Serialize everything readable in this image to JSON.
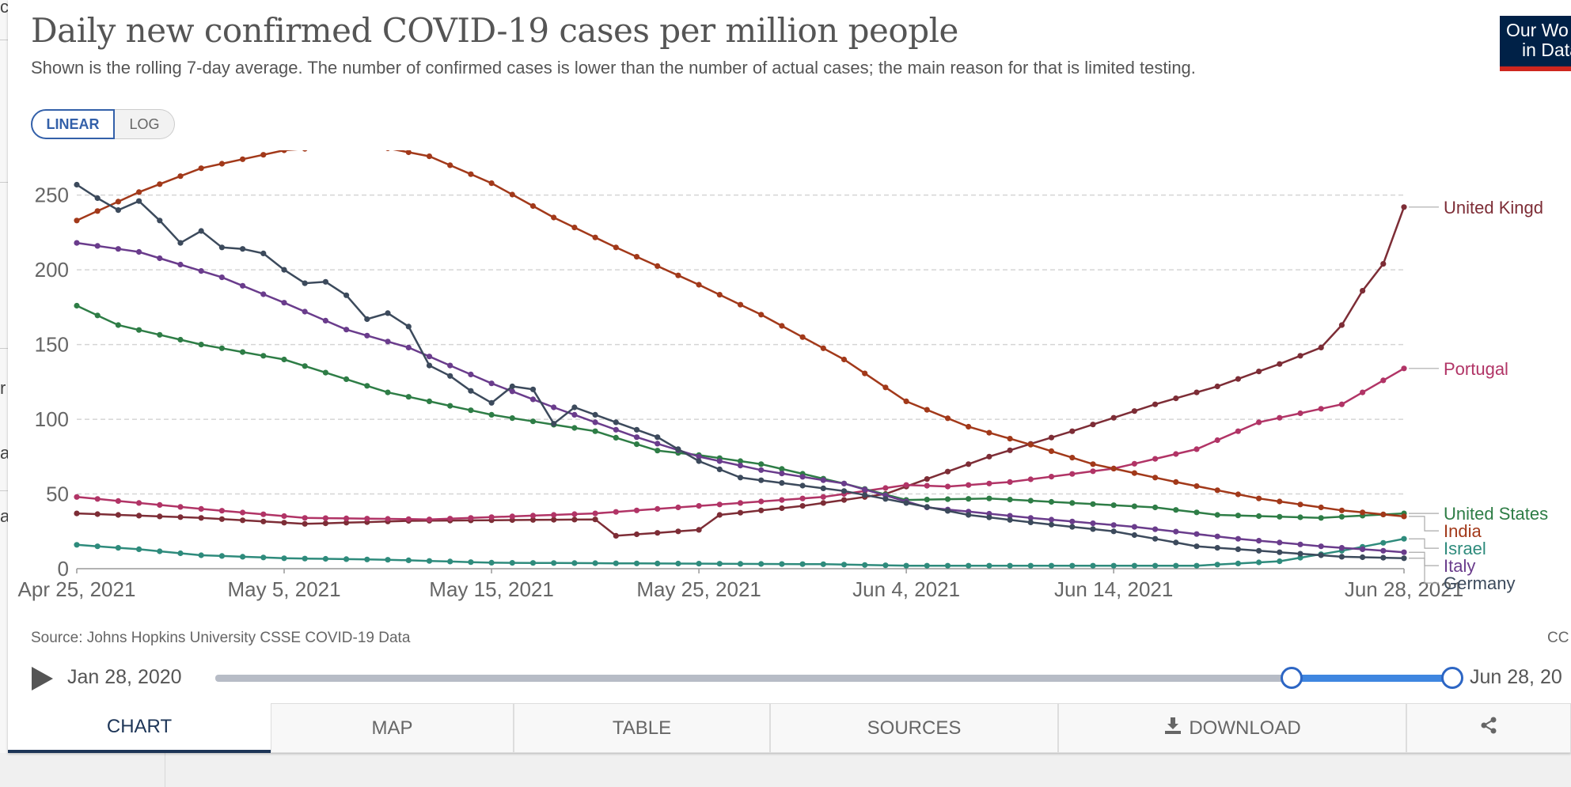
{
  "header": {
    "title": "Daily new confirmed COVID-19 cases per million people",
    "subtitle": "Shown is the rolling 7-day average. The number of confirmed cases is lower than the number of actual cases; the main reason for that is limited testing.",
    "logo_line1": "Our Wo",
    "logo_line2": "in Data"
  },
  "edge": {
    "letters": [
      "ci",
      "r",
      "a",
      "a"
    ]
  },
  "scale_toggle": {
    "linear": "LINEAR",
    "log": "LOG",
    "selected": "LINEAR"
  },
  "source": "Source: Johns Hopkins University CSSE COVID-19 Data",
  "license": "CC",
  "timeline": {
    "start": "Jan 28, 2020",
    "end": "Jun 28, 20",
    "range_start_fraction": 0.87,
    "range_end_fraction": 1.0
  },
  "tabs": [
    "CHART",
    "MAP",
    "TABLE",
    "SOURCES",
    "DOWNLOAD"
  ],
  "icons": {
    "play": "play-icon",
    "download": "download-icon",
    "share": "share-icon"
  },
  "chart_data": {
    "type": "line",
    "title": "Daily new confirmed COVID-19 cases per million people",
    "xlabel": "",
    "ylabel": "",
    "x_start": "Apr 25, 2021",
    "x_end": "Jun 28, 2021",
    "x_ticks": [
      "Apr 25, 2021",
      "May 5, 2021",
      "May 15, 2021",
      "May 25, 2021",
      "Jun 4, 2021",
      "Jun 14, 2021",
      "Jun 28, 2021"
    ],
    "y_ticks": [
      0,
      50,
      100,
      150,
      200,
      250
    ],
    "ylim": [
      0,
      280
    ],
    "grid": "horizontal dashed",
    "series": [
      {
        "name": "United Kingdom",
        "label": "United Kingd",
        "color": "#7d2d36",
        "anchors": [
          [
            "2021-04-25",
            37
          ],
          [
            "2021-05-01",
            34
          ],
          [
            "2021-05-06",
            30
          ],
          [
            "2021-05-11",
            32
          ],
          [
            "2021-05-20",
            33
          ],
          [
            "2021-05-21",
            22
          ],
          [
            "2021-05-25",
            26
          ],
          [
            "2021-05-26",
            36
          ],
          [
            "2021-05-30",
            42
          ],
          [
            "2021-06-03",
            50
          ],
          [
            "2021-06-08",
            75
          ],
          [
            "2021-06-12",
            92
          ],
          [
            "2021-06-16",
            110
          ],
          [
            "2021-06-19",
            122
          ],
          [
            "2021-06-22",
            137
          ],
          [
            "2021-06-24",
            148
          ],
          [
            "2021-06-25",
            163
          ],
          [
            "2021-06-26",
            186
          ],
          [
            "2021-06-27",
            204
          ],
          [
            "2021-06-28",
            242
          ]
        ]
      },
      {
        "name": "Portugal",
        "label": "Portugal",
        "color": "#b13466",
        "anchors": [
          [
            "2021-04-25",
            48
          ],
          [
            "2021-05-01",
            40
          ],
          [
            "2021-05-06",
            34
          ],
          [
            "2021-05-12",
            33
          ],
          [
            "2021-05-20",
            37
          ],
          [
            "2021-05-25",
            42
          ],
          [
            "2021-05-31",
            48
          ],
          [
            "2021-06-04",
            56
          ],
          [
            "2021-06-06",
            55
          ],
          [
            "2021-06-09",
            58
          ],
          [
            "2021-06-14",
            67
          ],
          [
            "2021-06-18",
            80
          ],
          [
            "2021-06-21",
            98
          ],
          [
            "2021-06-25",
            110
          ],
          [
            "2021-06-28",
            134
          ]
        ]
      },
      {
        "name": "United States",
        "label": "United States",
        "color": "#2e7d46",
        "anchors": [
          [
            "2021-04-25",
            176
          ],
          [
            "2021-04-27",
            163
          ],
          [
            "2021-05-01",
            150
          ],
          [
            "2021-05-05",
            140
          ],
          [
            "2021-05-10",
            118
          ],
          [
            "2021-05-15",
            103
          ],
          [
            "2021-05-20",
            92
          ],
          [
            "2021-05-23",
            79
          ],
          [
            "2021-05-25",
            76
          ],
          [
            "2021-05-28",
            70
          ],
          [
            "2021-06-01",
            57
          ],
          [
            "2021-06-04",
            46
          ],
          [
            "2021-06-08",
            47
          ],
          [
            "2021-06-12",
            44
          ],
          [
            "2021-06-16",
            41
          ],
          [
            "2021-06-19",
            36
          ],
          [
            "2021-06-24",
            34
          ],
          [
            "2021-06-28",
            37
          ]
        ]
      },
      {
        "name": "India",
        "label": "India",
        "color": "#a2391a",
        "anchors": [
          [
            "2021-04-25",
            233
          ],
          [
            "2021-04-28",
            252
          ],
          [
            "2021-05-01",
            268
          ],
          [
            "2021-05-05",
            280
          ],
          [
            "2021-05-09",
            284
          ],
          [
            "2021-05-12",
            276
          ],
          [
            "2021-05-15",
            258
          ],
          [
            "2021-05-18",
            235
          ],
          [
            "2021-05-21",
            215
          ],
          [
            "2021-05-25",
            190
          ],
          [
            "2021-05-28",
            170
          ],
          [
            "2021-06-01",
            140
          ],
          [
            "2021-06-04",
            112
          ],
          [
            "2021-06-07",
            95
          ],
          [
            "2021-06-10",
            83
          ],
          [
            "2021-06-13",
            70
          ],
          [
            "2021-06-17",
            58
          ],
          [
            "2021-06-21",
            47
          ],
          [
            "2021-06-25",
            39
          ],
          [
            "2021-06-28",
            35
          ]
        ]
      },
      {
        "name": "Israel",
        "label": "Israel",
        "color": "#2e8b7c",
        "anchors": [
          [
            "2021-04-25",
            16
          ],
          [
            "2021-04-28",
            13
          ],
          [
            "2021-05-01",
            9
          ],
          [
            "2021-05-05",
            7
          ],
          [
            "2021-05-10",
            6
          ],
          [
            "2021-05-15",
            4
          ],
          [
            "2021-05-31",
            3
          ],
          [
            "2021-06-04",
            2
          ],
          [
            "2021-06-18",
            2
          ],
          [
            "2021-06-22",
            5
          ],
          [
            "2021-06-25",
            12
          ],
          [
            "2021-06-28",
            20
          ]
        ]
      },
      {
        "name": "Italy",
        "label": "Italy",
        "color": "#6a3c8c",
        "anchors": [
          [
            "2021-04-25",
            218
          ],
          [
            "2021-04-28",
            212
          ],
          [
            "2021-05-02",
            195
          ],
          [
            "2021-05-05",
            178
          ],
          [
            "2021-05-08",
            160
          ],
          [
            "2021-05-11",
            148
          ],
          [
            "2021-05-15",
            124
          ],
          [
            "2021-05-18",
            108
          ],
          [
            "2021-05-22",
            88
          ],
          [
            "2021-05-25",
            75
          ],
          [
            "2021-05-28",
            66
          ],
          [
            "2021-06-01",
            57
          ],
          [
            "2021-06-05",
            41
          ],
          [
            "2021-06-10",
            34
          ],
          [
            "2021-06-15",
            28
          ],
          [
            "2021-06-20",
            20
          ],
          [
            "2021-06-24",
            15
          ],
          [
            "2021-06-28",
            11
          ]
        ]
      },
      {
        "name": "Germany",
        "label": "Germany",
        "color": "#3c4a5c",
        "anchors": [
          [
            "2021-04-25",
            257
          ],
          [
            "2021-04-26",
            248
          ],
          [
            "2021-04-27",
            240
          ],
          [
            "2021-04-28",
            246
          ],
          [
            "2021-04-29",
            233
          ],
          [
            "2021-04-30",
            218
          ],
          [
            "2021-05-01",
            226
          ],
          [
            "2021-05-02",
            215
          ],
          [
            "2021-05-03",
            214
          ],
          [
            "2021-05-04",
            211
          ],
          [
            "2021-05-05",
            200
          ],
          [
            "2021-05-06",
            191
          ],
          [
            "2021-05-07",
            192
          ],
          [
            "2021-05-08",
            183
          ],
          [
            "2021-05-09",
            167
          ],
          [
            "2021-05-10",
            171
          ],
          [
            "2021-05-11",
            162
          ],
          [
            "2021-05-12",
            136
          ],
          [
            "2021-05-13",
            129
          ],
          [
            "2021-05-14",
            119
          ],
          [
            "2021-05-15",
            111
          ],
          [
            "2021-05-16",
            122
          ],
          [
            "2021-05-17",
            120
          ],
          [
            "2021-05-18",
            97
          ],
          [
            "2021-05-19",
            108
          ],
          [
            "2021-05-21",
            98
          ],
          [
            "2021-05-23",
            88
          ],
          [
            "2021-05-25",
            72
          ],
          [
            "2021-05-27",
            61
          ],
          [
            "2021-06-01",
            52
          ],
          [
            "2021-06-04",
            44
          ],
          [
            "2021-06-07",
            36
          ],
          [
            "2021-06-10",
            31
          ],
          [
            "2021-06-14",
            25
          ],
          [
            "2021-06-18",
            15
          ],
          [
            "2021-06-22",
            11
          ],
          [
            "2021-06-25",
            8
          ],
          [
            "2021-06-28",
            7
          ]
        ]
      }
    ]
  }
}
